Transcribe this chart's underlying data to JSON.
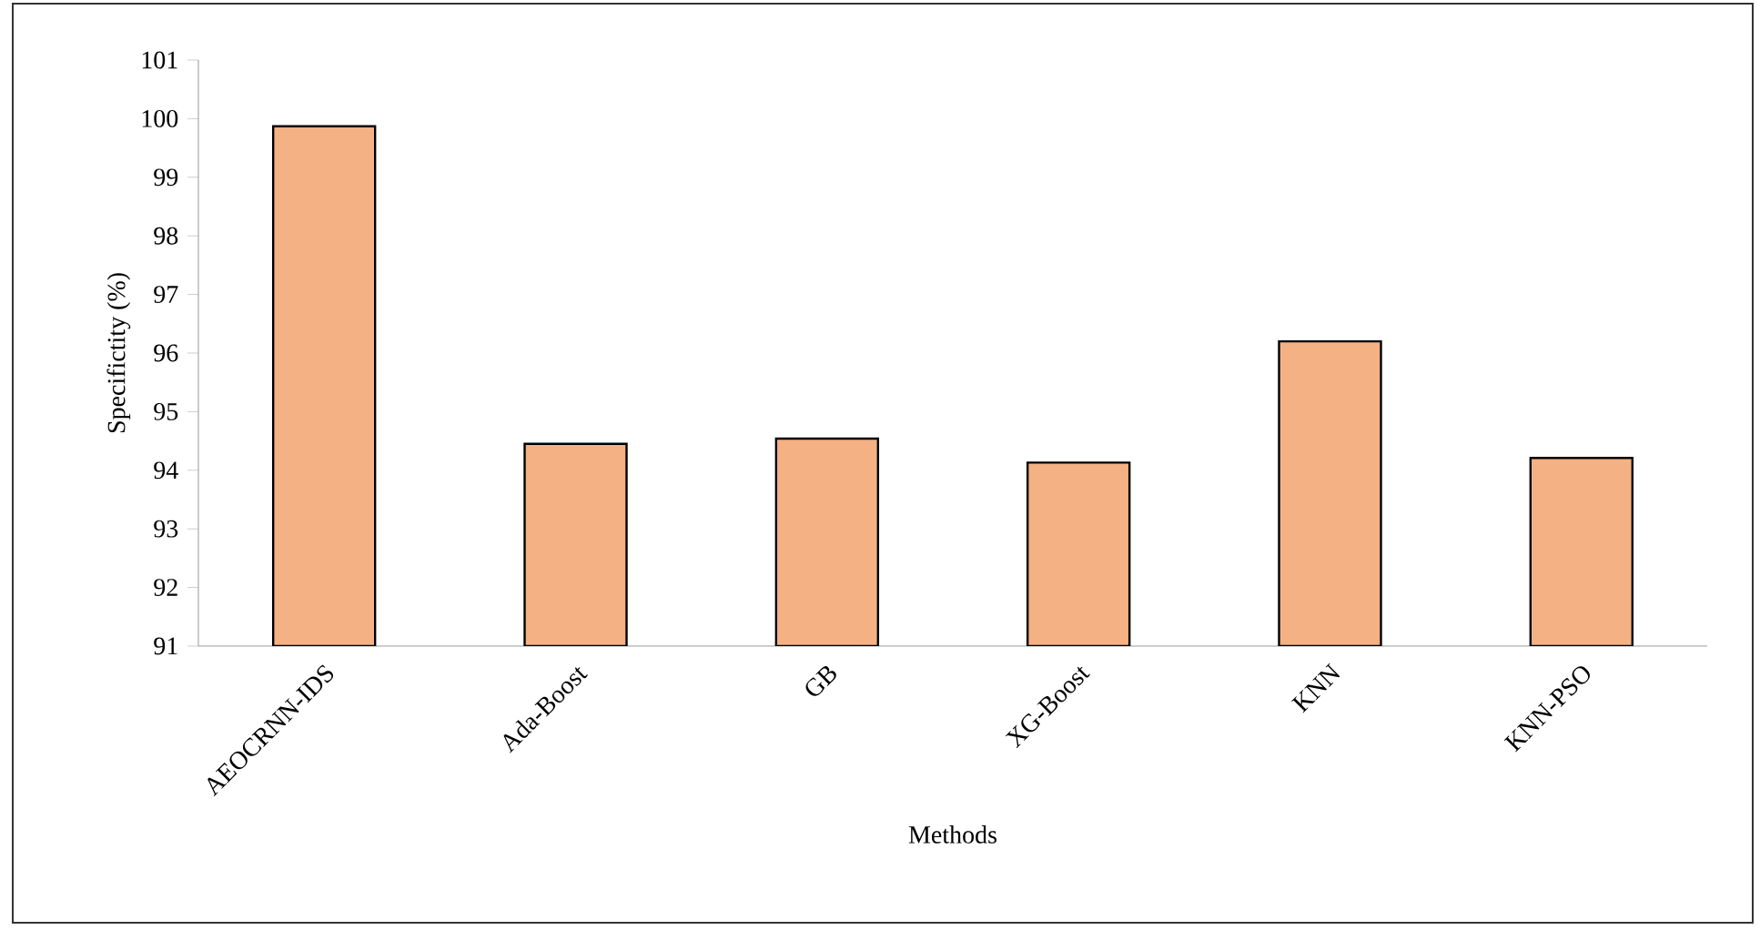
{
  "chart_data": {
    "type": "bar",
    "xlabel": "Methods",
    "ylabel": "Specifictity (%)",
    "categories": [
      "AEOCRNN-IDS",
      "Ada-Boost",
      "GB",
      "XG-Boost",
      "KNN",
      "KNN-PSO"
    ],
    "values": [
      99.87,
      94.45,
      94.54,
      94.13,
      96.2,
      94.21
    ],
    "color": "#f4b183",
    "ylim": [
      91,
      101
    ],
    "yticks": [
      91,
      92,
      93,
      94,
      95,
      96,
      97,
      98,
      99,
      100,
      101
    ]
  }
}
